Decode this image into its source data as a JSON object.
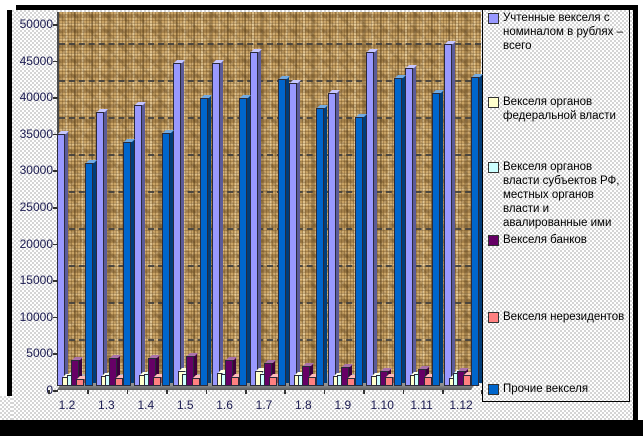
{
  "chart_data": {
    "type": "bar",
    "style": "3d-clustered-vertical",
    "categories": [
      "1.2",
      "1.3",
      "1.4",
      "1.5",
      "1.6",
      "1.7",
      "1.8",
      "1.9",
      "1.10",
      "1.11",
      "1.12"
    ],
    "series": [
      {
        "name": "Учтенные векселя с номиналом в рублях – всего",
        "color": "#9999FF",
        "values": [
          34500,
          37500,
          38500,
          44300,
          44300,
          45800,
          41500,
          40100,
          45700,
          43600,
          46800
        ]
      },
      {
        "name": "Векселя органов федеральной власти",
        "color": "#FFFFCC",
        "values": [
          1300,
          1400,
          1500,
          2000,
          1800,
          2000,
          1500,
          1400,
          1400,
          1500,
          1100
        ]
      },
      {
        "name": "Векселя органов власти субъектов РФ, местных органов власти и авалированные ими",
        "color": "#CCFFFF",
        "values": [
          1500,
          1500,
          1600,
          1700,
          1700,
          1600,
          1500,
          1500,
          1500,
          1600,
          1800
        ]
      },
      {
        "name": "Векселя банков",
        "color": "#660066",
        "values": [
          3600,
          3800,
          3800,
          4100,
          3600,
          3100,
          2800,
          2600,
          2000,
          2300,
          2100
        ]
      },
      {
        "name": "Векселя нерезидентов",
        "color": "#FF8080",
        "values": [
          1000,
          1100,
          1200,
          1100,
          1200,
          1300,
          1200,
          1100,
          1300,
          1200,
          1500
        ]
      },
      {
        "name": "Прочие векселя",
        "color": "#0066CC",
        "values": [
          30500,
          33400,
          34600,
          39500,
          39500,
          42100,
          38100,
          36900,
          42200,
          40100,
          42300
        ]
      }
    ],
    "title": "",
    "xlabel": "",
    "ylabel": "",
    "ylim": [
      0,
      50000
    ],
    "ytick_step": 5000,
    "grid": "horizontal-dashed-every-5000",
    "legend_position": "right",
    "wall_color": "#c9a365",
    "floor_color": "#8f8f8f",
    "axis_label_color": "#1c1c52"
  }
}
